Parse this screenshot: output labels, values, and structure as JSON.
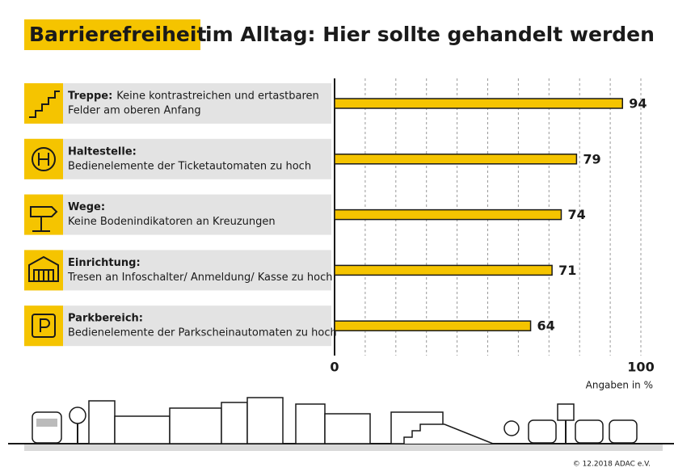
{
  "chart_data": {
    "type": "bar",
    "orientation": "horizontal",
    "title_highlight": "Barrierefreiheit",
    "title": "im Alltag: Hier sollte gehandelt werden",
    "categories": [
      "Treppe:",
      "Haltestelle:",
      "Wege:",
      "Einrichtung:",
      "Parkbereich:"
    ],
    "descriptions": [
      [
        "Keine kontrastreichen und ertastbaren",
        "Felder am oberen Anfang"
      ],
      [
        "Bedienelemente der Ticketautomaten zu hoch"
      ],
      [
        "Keine Bodenindikatoren an Kreuzungen"
      ],
      [
        "Tresen an Infoschalter/ Anmeldung/ Kasse zu hoch"
      ],
      [
        "Bedienelemente der Parkscheinautomaten zu hoch"
      ]
    ],
    "values": [
      94,
      79,
      74,
      71,
      64
    ],
    "color": "#f5c400",
    "xlim": [
      0,
      100
    ],
    "xticks": [
      0,
      100
    ],
    "grid_xticks": [
      10,
      20,
      30,
      40,
      50,
      60,
      70,
      80,
      90
    ],
    "grid": true,
    "x_label": "Angaben in %",
    "credit": "© 12.2018 ADAC e.V."
  }
}
